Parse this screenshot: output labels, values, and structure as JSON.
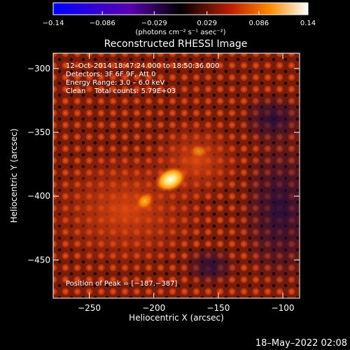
{
  "colorbar": {
    "tick_labels": [
      "−0.14",
      "−0.086",
      "−0.029",
      "0.029",
      "0.086",
      "0.14"
    ],
    "unit_label": "(photons cm⁻² s⁻¹ asec⁻²)",
    "range": [
      -0.14,
      0.14
    ],
    "ticks": [
      -0.14,
      -0.086,
      -0.029,
      0.029,
      0.086,
      0.14
    ]
  },
  "chart_data": {
    "type": "heatmap",
    "title": "Reconstructed RHESSI Image",
    "xlabel": "Heliocentric X (arcsec)",
    "ylabel": "Heliocentric Y (arcsec)",
    "xlim": [
      -278,
      -87
    ],
    "ylim": [
      -480,
      -288
    ],
    "xticks": [
      -250,
      -200,
      -150,
      -100
    ],
    "xtick_labels": [
      "−250",
      "−200",
      "−150",
      "−100"
    ],
    "yticks": [
      -300,
      -350,
      -400,
      -450
    ],
    "ytick_labels": [
      "−300",
      "−350",
      "−400",
      "−450"
    ],
    "annotations": [
      "12–Oct–2014 18:47:24.000 to 18:50:36.000",
      "Detectors: 3F 6F 9F, Att 0",
      "Energy Range: 3.0 – 6.0 keV",
      "Clean    Total counts: 5.79E+03"
    ],
    "peak_label": "Position of Peak = [−187,−387]",
    "peak_position": [
      -187,
      -387
    ],
    "sources": [
      {
        "x": -187,
        "y": -387,
        "intensity": 0.14
      },
      {
        "x": -207,
        "y": -404,
        "intensity": 0.09
      },
      {
        "x": -165,
        "y": -365,
        "intensity": 0.05
      }
    ],
    "colormap": "blue-purple-red-yellow-white"
  },
  "footer": {
    "date": "18–May–2022 02:08"
  }
}
